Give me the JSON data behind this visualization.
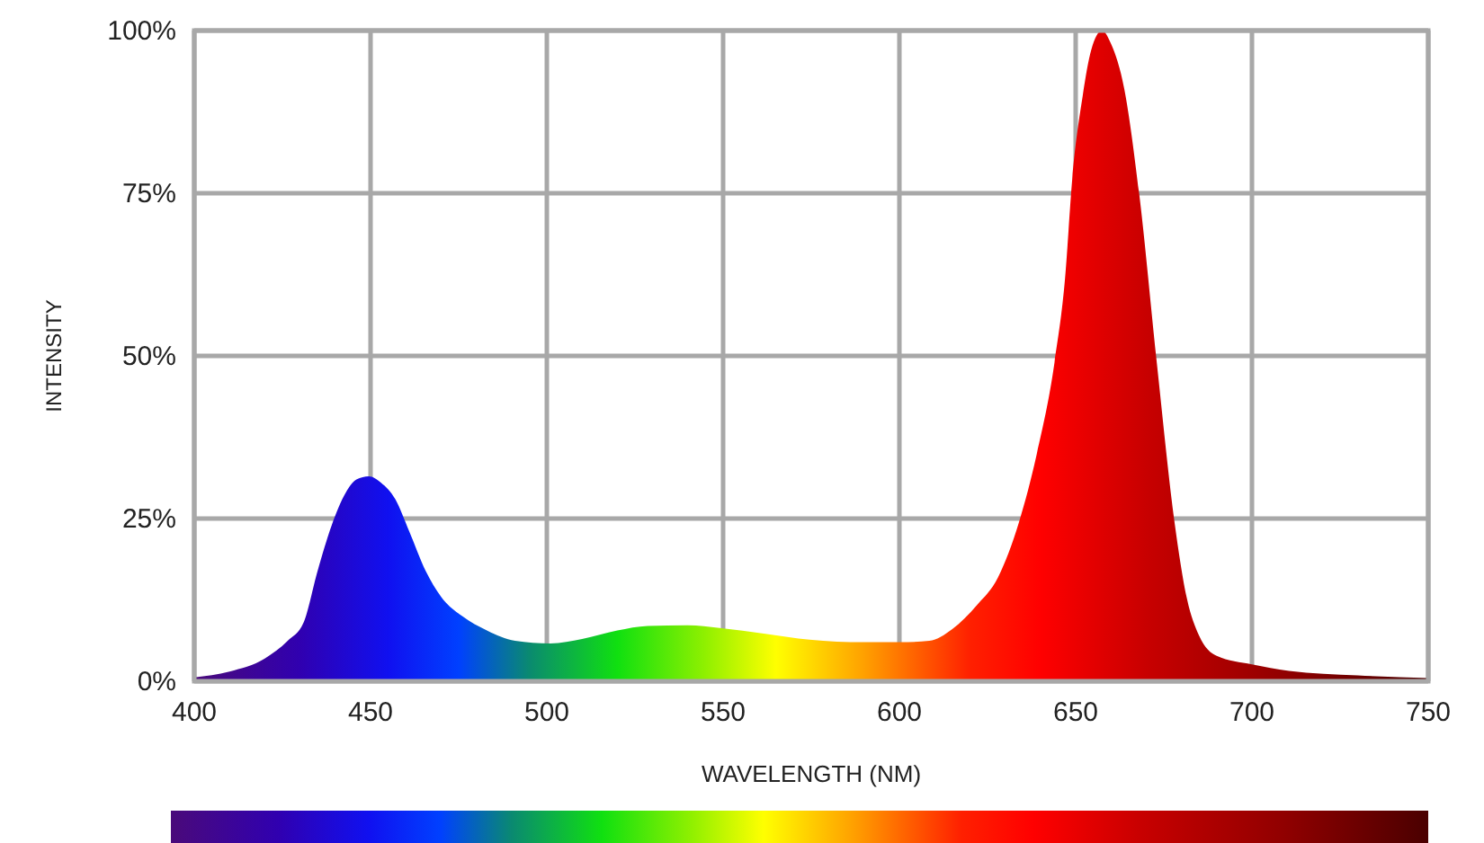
{
  "chart_data": {
    "type": "area",
    "xlabel": "WAVELENGTH (NM)",
    "ylabel": "INTENSITY",
    "x": [
      400,
      410,
      420,
      426.5,
      431,
      435,
      439,
      443,
      446,
      449.5,
      453,
      457,
      461,
      465.6,
      470,
      476,
      483,
      491,
      501,
      510,
      520,
      528.6,
      540,
      549,
      562,
      574.5,
      590,
      600,
      608.5,
      615,
      622,
      628,
      634,
      639,
      644,
      647,
      649,
      652,
      654.4,
      657.5,
      660,
      663.8,
      668,
      673,
      678,
      681.6,
      685,
      690,
      700,
      710.5,
      730,
      750
    ],
    "series": [
      {
        "values": [
          0.6,
          1.5,
          3.5,
          6.2,
          9,
          17,
          24,
          29,
          31,
          31.5,
          30.5,
          28,
          23,
          17,
          13,
          10,
          7.8,
          6.2,
          5.8,
          6.5,
          7.8,
          8.5,
          8.6,
          8.2,
          7.3,
          6.4,
          6,
          6,
          6.2,
          8,
          11.7,
          16,
          24.6,
          35,
          49,
          62,
          77,
          90,
          97,
          100,
          98,
          91,
          75,
          49,
          24.6,
          12.6,
          7,
          3.9,
          2.6,
          1.6,
          0.9,
          0.5
        ]
      }
    ],
    "xlim": [
      400,
      750
    ],
    "xticks": [
      400,
      450,
      500,
      550,
      600,
      650,
      700,
      750
    ],
    "ylim": [
      0,
      100
    ],
    "yticks": [
      {
        "value": 0,
        "label": "0%"
      },
      {
        "value": 25,
        "label": "25%"
      },
      {
        "value": 50,
        "label": "50%"
      },
      {
        "value": 75,
        "label": "75%"
      },
      {
        "value": 100,
        "label": "100%"
      }
    ],
    "grid": true
  }
}
